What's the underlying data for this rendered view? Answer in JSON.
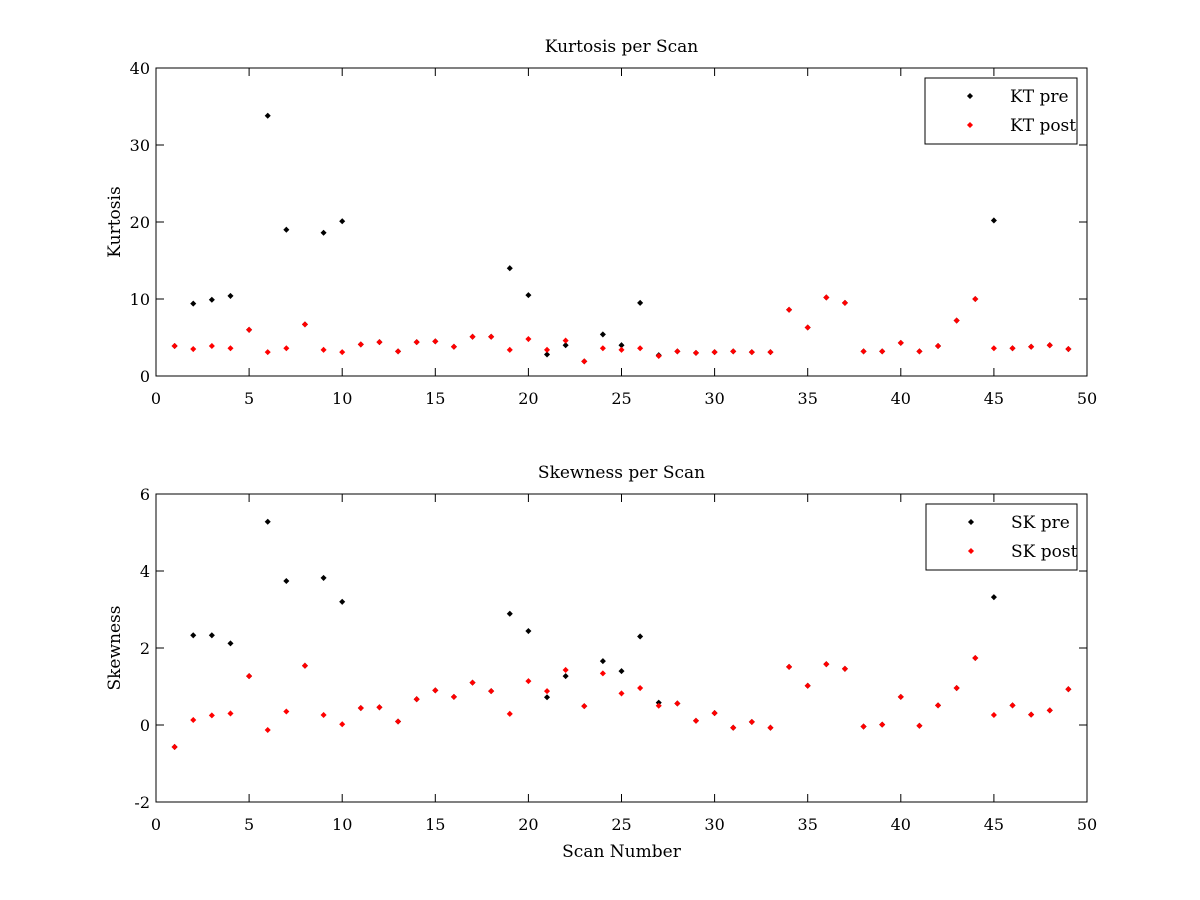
{
  "colors": {
    "pre": "#000000",
    "post": "#ff0000",
    "axis": "#000000",
    "background": "#ffffff"
  },
  "chart_data": [
    {
      "type": "scatter",
      "title": "Kurtosis per Scan",
      "xlabel": "",
      "ylabel": "Kurtosis",
      "xlim": [
        0,
        50
      ],
      "ylim": [
        0,
        40
      ],
      "xticks": [
        "0",
        "5",
        "10",
        "15",
        "20",
        "25",
        "30",
        "35",
        "40",
        "45",
        "50"
      ],
      "yticks": [
        "0",
        "10",
        "20",
        "30",
        "40"
      ],
      "legend_position": "top-right",
      "grid": false,
      "series": [
        {
          "name": "KT pre",
          "color": "#000000",
          "x": [
            1,
            2,
            3,
            4,
            5,
            6,
            7,
            8,
            9,
            10,
            11,
            12,
            13,
            14,
            15,
            16,
            17,
            18,
            19,
            20,
            21,
            22,
            23,
            24,
            25,
            26,
            27,
            28,
            29,
            30,
            31,
            32,
            33,
            34,
            35,
            36,
            37,
            38,
            39,
            40,
            41,
            42,
            43,
            44,
            45,
            46,
            47,
            48,
            49
          ],
          "y": [
            3.9,
            9.4,
            9.9,
            10.4,
            6.0,
            33.8,
            19.0,
            6.7,
            18.6,
            20.1,
            4.1,
            4.4,
            3.2,
            4.4,
            4.5,
            3.8,
            5.1,
            5.1,
            14.0,
            10.5,
            2.8,
            4.0,
            1.9,
            5.4,
            4.0,
            9.5,
            2.7,
            3.2,
            3.0,
            3.1,
            3.2,
            3.1,
            3.1,
            8.6,
            6.3,
            10.2,
            9.5,
            3.2,
            3.2,
            4.3,
            3.2,
            3.9,
            7.2,
            10.0,
            20.2,
            3.6,
            3.8,
            4.0,
            3.5
          ]
        },
        {
          "name": "KT post",
          "color": "#ff0000",
          "x": [
            1,
            2,
            3,
            4,
            5,
            6,
            7,
            8,
            9,
            10,
            11,
            12,
            13,
            14,
            15,
            16,
            17,
            18,
            19,
            20,
            21,
            22,
            23,
            24,
            25,
            26,
            27,
            28,
            29,
            30,
            31,
            32,
            33,
            34,
            35,
            36,
            37,
            38,
            39,
            40,
            41,
            42,
            43,
            44,
            45,
            46,
            47,
            48,
            49
          ],
          "y": [
            3.9,
            3.5,
            3.9,
            3.6,
            6.0,
            3.1,
            3.6,
            6.7,
            3.4,
            3.1,
            4.1,
            4.4,
            3.2,
            4.4,
            4.5,
            3.8,
            5.1,
            5.1,
            3.4,
            4.8,
            3.4,
            4.6,
            1.9,
            3.6,
            3.4,
            3.6,
            2.6,
            3.2,
            3.0,
            3.1,
            3.2,
            3.1,
            3.1,
            8.6,
            6.3,
            10.2,
            9.5,
            3.2,
            3.2,
            4.3,
            3.2,
            3.9,
            7.2,
            10.0,
            3.6,
            3.6,
            3.8,
            4.0,
            3.5
          ]
        }
      ]
    },
    {
      "type": "scatter",
      "title": "Skewness per Scan",
      "xlabel": "Scan Number",
      "ylabel": "Skewness",
      "xlim": [
        0,
        50
      ],
      "ylim": [
        -2,
        6
      ],
      "xticks": [
        "0",
        "5",
        "10",
        "15",
        "20",
        "25",
        "30",
        "35",
        "40",
        "45",
        "50"
      ],
      "yticks": [
        "-2",
        "0",
        "2",
        "4",
        "6"
      ],
      "legend_position": "top-right",
      "grid": false,
      "series": [
        {
          "name": "SK pre",
          "color": "#000000",
          "x": [
            1,
            2,
            3,
            4,
            5,
            6,
            7,
            8,
            9,
            10,
            11,
            12,
            13,
            14,
            15,
            16,
            17,
            18,
            19,
            20,
            21,
            22,
            23,
            24,
            25,
            26,
            27,
            28,
            29,
            30,
            31,
            32,
            33,
            34,
            35,
            36,
            37,
            38,
            39,
            40,
            41,
            42,
            43,
            44,
            45,
            46,
            47,
            48,
            49
          ],
          "y": [
            -0.57,
            2.33,
            2.33,
            2.12,
            1.27,
            5.28,
            3.74,
            1.54,
            3.82,
            3.2,
            0.44,
            0.46,
            0.09,
            0.67,
            0.9,
            0.73,
            1.1,
            0.88,
            2.89,
            2.44,
            0.72,
            1.27,
            0.49,
            1.66,
            1.4,
            2.3,
            0.58,
            0.56,
            0.11,
            0.31,
            -0.07,
            0.08,
            -0.07,
            1.51,
            1.02,
            1.58,
            1.46,
            -0.04,
            0.01,
            0.73,
            -0.02,
            0.51,
            0.96,
            1.74,
            3.32,
            0.51,
            0.27,
            0.38,
            0.93
          ]
        },
        {
          "name": "SK post",
          "color": "#ff0000",
          "x": [
            1,
            2,
            3,
            4,
            5,
            6,
            7,
            8,
            9,
            10,
            11,
            12,
            13,
            14,
            15,
            16,
            17,
            18,
            19,
            20,
            21,
            22,
            23,
            24,
            25,
            26,
            27,
            28,
            29,
            30,
            31,
            32,
            33,
            34,
            35,
            36,
            37,
            38,
            39,
            40,
            41,
            42,
            43,
            44,
            45,
            46,
            47,
            48,
            49
          ],
          "y": [
            -0.57,
            0.13,
            0.25,
            0.3,
            1.27,
            -0.13,
            0.35,
            1.54,
            0.26,
            0.02,
            0.44,
            0.46,
            0.09,
            0.67,
            0.9,
            0.73,
            1.1,
            0.88,
            0.29,
            1.14,
            0.88,
            1.43,
            0.49,
            1.34,
            0.82,
            0.96,
            0.5,
            0.56,
            0.11,
            0.31,
            -0.07,
            0.08,
            -0.07,
            1.51,
            1.02,
            1.58,
            1.46,
            -0.04,
            0.01,
            0.73,
            -0.02,
            0.51,
            0.96,
            1.74,
            0.26,
            0.51,
            0.27,
            0.38,
            0.93
          ]
        }
      ]
    }
  ]
}
